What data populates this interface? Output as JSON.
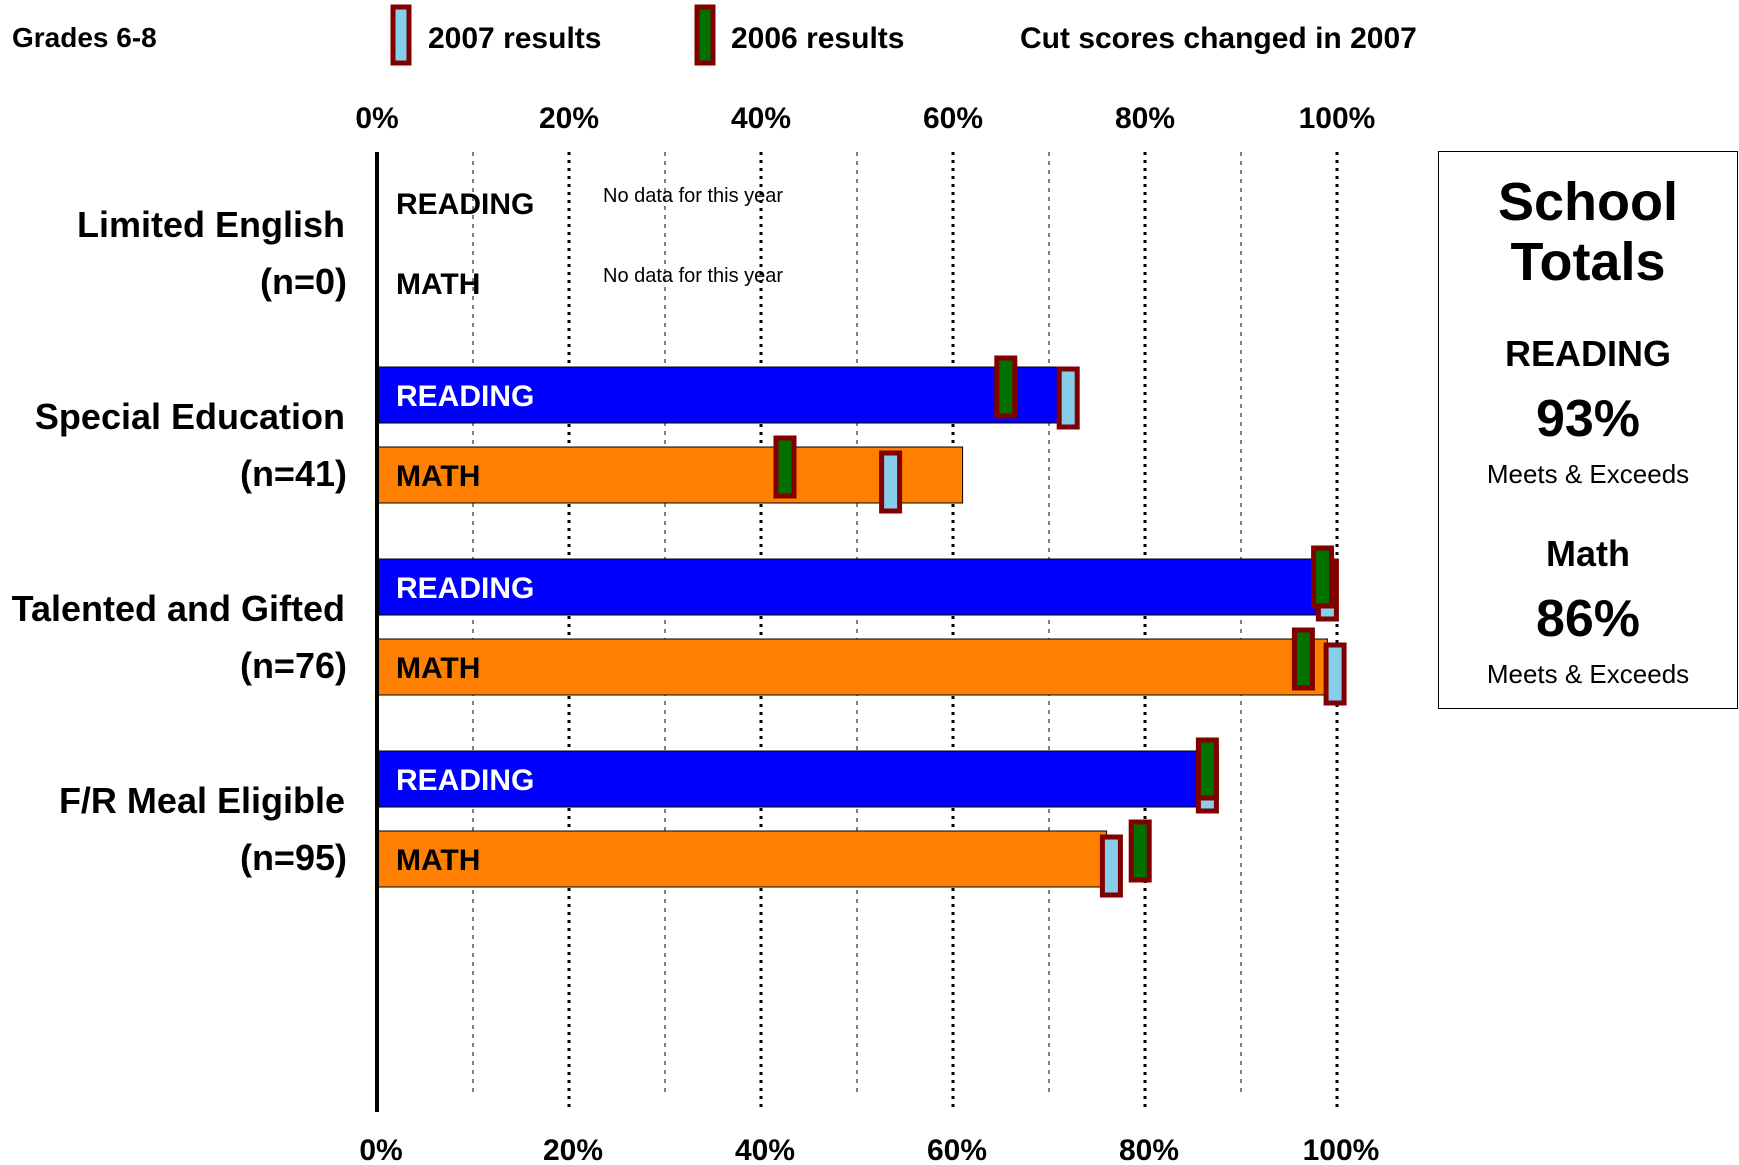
{
  "header": {
    "grade_label": "Grades 6-8",
    "legend_2007": "2007 results",
    "legend_2006": "2006 results",
    "cut_note": "Cut scores changed in 2007"
  },
  "school_totals": {
    "title_line1": "School",
    "title_line2": "Totals",
    "reading_label": "READING",
    "reading_value": "93%",
    "reading_note": "Meets & Exceeds",
    "math_label": "Math",
    "math_value": "86%",
    "math_note": "Meets & Exceeds"
  },
  "colors": {
    "reading_bar": "#0000ff",
    "math_bar": "#ff8000",
    "marker_2007_fill": "#87ceeb",
    "marker_2006_fill": "#007000",
    "marker_border": "#800000"
  },
  "chart_data": {
    "type": "bar",
    "orientation": "horizontal",
    "xlim": [
      0,
      100
    ],
    "x_ticks": [
      "0%",
      "20%",
      "40%",
      "60%",
      "80%",
      "100%"
    ],
    "no_data_text": "No data for this year",
    "groups": [
      {
        "label": "Limited English",
        "n_label": "(n=0)",
        "bars": [
          {
            "subject": "READING",
            "value": null,
            "result_2007": null,
            "result_2006": null
          },
          {
            "subject": "MATH",
            "value": null,
            "result_2007": null,
            "result_2006": null
          }
        ]
      },
      {
        "label": "Special Education",
        "n_label": "(n=41)",
        "bars": [
          {
            "subject": "READING",
            "value": 73,
            "result_2007": 72,
            "result_2006": 65.5
          },
          {
            "subject": "MATH",
            "value": 61,
            "result_2007": 53.5,
            "result_2006": 42.5
          }
        ]
      },
      {
        "label": "Talented and Gifted",
        "n_label": "(n=76)",
        "bars": [
          {
            "subject": "READING",
            "value": 99,
            "result_2007": 99,
            "result_2006": 98.5
          },
          {
            "subject": "MATH",
            "value": 99,
            "result_2007": 99.8,
            "result_2006": 96.5
          }
        ]
      },
      {
        "label": "F/R Meal Eligible",
        "n_label": "(n=95)",
        "bars": [
          {
            "subject": "READING",
            "value": 86,
            "result_2007": 86.5,
            "result_2006": 86.5
          },
          {
            "subject": "MATH",
            "value": 76,
            "result_2007": 76.5,
            "result_2006": 79.5
          }
        ]
      }
    ]
  }
}
